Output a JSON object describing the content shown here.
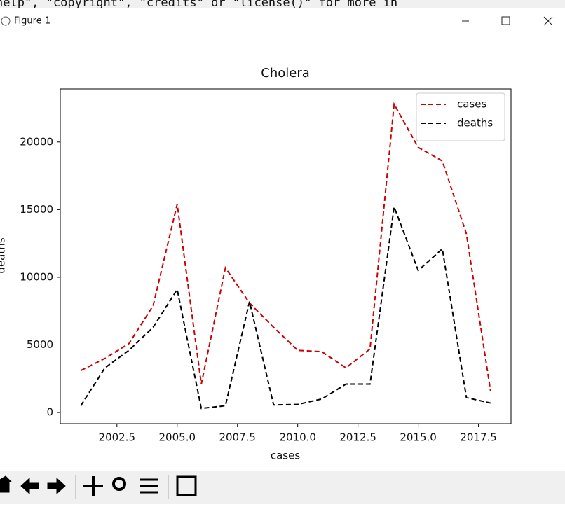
{
  "window": {
    "title": "Figure 1",
    "background_text": "help\", \"copyright\", \"credits\" or \"license()\" for more in"
  },
  "chart_data": {
    "type": "line",
    "title": "Cholera",
    "x_label": "cases",
    "y_label": "deaths",
    "x": [
      2001,
      2002,
      2003,
      2004,
      2005,
      2006,
      2007,
      2008,
      2009,
      2010,
      2011,
      2012,
      2013,
      2014,
      2015,
      2016,
      2017,
      2018
    ],
    "series": [
      {
        "name": "cases",
        "color": "#cc0000",
        "values": [
          3100,
          4000,
          5100,
          7900,
          15400,
          2100,
          10700,
          8100,
          6300,
          4600,
          4500,
          3300,
          4700,
          22800,
          19600,
          18600,
          13200,
          1600
        ]
      },
      {
        "name": "deaths",
        "color": "#000000",
        "values": [
          500,
          3300,
          4600,
          6300,
          9100,
          300,
          500,
          8200,
          560,
          600,
          1000,
          2100,
          2100,
          15200,
          10500,
          12100,
          1100,
          700
        ]
      }
    ],
    "line_style": "dashed",
    "xlim": [
      2000.15,
      2018.85
    ],
    "xticks": [
      2002.5,
      {
        "value": 2005,
        "label": "2005.0"
      },
      2007.5,
      {
        "value": 2010,
        "label": "2010.0"
      },
      2012.5,
      {
        "value": 2015,
        "label": "2015.0"
      },
      2017.5
    ],
    "ylim": [
      -825,
      23925
    ],
    "yticks": [
      0,
      5000,
      10000,
      15000,
      20000
    ],
    "legend": "upper right"
  }
}
